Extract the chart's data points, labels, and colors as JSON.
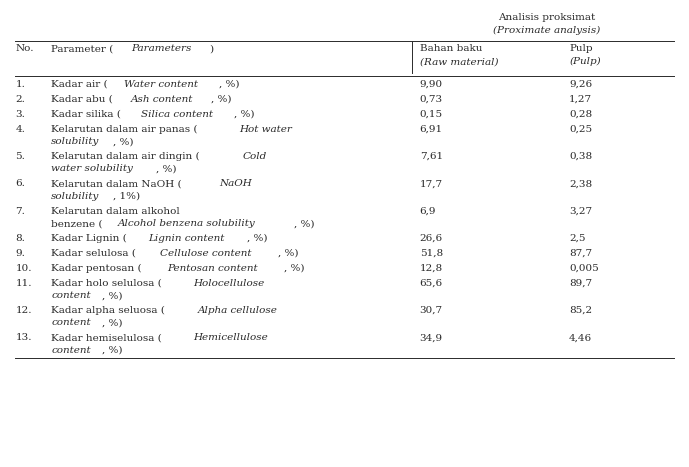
{
  "bg_color": "#ffffff",
  "text_color": "#2a2a2a",
  "fs": 7.5,
  "title1": "Analisis proksimat",
  "title2": "(Proximate analysis)",
  "hdr_no": "No.",
  "hdr_param": "Parameter (",
  "hdr_param_italic": "Parameters",
  "hdr_param_end": ")",
  "hdr_bahan": "Bahan baku",
  "hdr_bahan_italic": "(Raw material)",
  "hdr_pulp": "Pulp",
  "hdr_pulp_italic": "(Pulp)",
  "rows": [
    {
      "no": "1.",
      "lines": [
        [
          {
            "t": "Kadar air (",
            "style": "normal"
          },
          {
            "t": "Water content",
            "style": "italic"
          },
          {
            "t": ", %)",
            "style": "normal"
          }
        ]
      ],
      "val1": "9,90",
      "val2": "9,26"
    },
    {
      "no": "2.",
      "lines": [
        [
          {
            "t": "Kadar abu (",
            "style": "normal"
          },
          {
            "t": "Ash content",
            "style": "italic"
          },
          {
            "t": ", %)",
            "style": "normal"
          }
        ]
      ],
      "val1": "0,73",
      "val2": "1,27"
    },
    {
      "no": "3.",
      "lines": [
        [
          {
            "t": "Kadar silika (",
            "style": "normal"
          },
          {
            "t": "Silica content",
            "style": "italic"
          },
          {
            "t": ", %)",
            "style": "normal"
          }
        ]
      ],
      "val1": "0,15",
      "val2": "0,28"
    },
    {
      "no": "4.",
      "lines": [
        [
          {
            "t": "Kelarutan dalam air panas (",
            "style": "normal"
          },
          {
            "t": "Hot water",
            "style": "italic"
          }
        ],
        [
          {
            "t": "solubility",
            "style": "italic"
          },
          {
            "t": ", %)",
            "style": "normal"
          }
        ]
      ],
      "val1": "6,91",
      "val2": "0,25"
    },
    {
      "no": "5.",
      "lines": [
        [
          {
            "t": "Kelarutan dalam air dingin (",
            "style": "normal"
          },
          {
            "t": "Cold",
            "style": "italic"
          }
        ],
        [
          {
            "t": "water solubility",
            "style": "italic"
          },
          {
            "t": ", %)",
            "style": "normal"
          }
        ]
      ],
      "val1": "7,61",
      "val2": "0,38"
    },
    {
      "no": "6.",
      "lines": [
        [
          {
            "t": "Kelarutan dalam NaOH (",
            "style": "normal"
          },
          {
            "t": "NaOH",
            "style": "italic"
          }
        ],
        [
          {
            "t": "solubility",
            "style": "italic"
          },
          {
            "t": ", 1%)",
            "style": "normal"
          }
        ]
      ],
      "val1": "17,7",
      "val2": "2,38"
    },
    {
      "no": "7.",
      "lines": [
        [
          {
            "t": "Kelarutan dalam alkohol",
            "style": "normal"
          }
        ],
        [
          {
            "t": "benzene (",
            "style": "normal"
          },
          {
            "t": "Alcohol benzena solubility",
            "style": "italic"
          },
          {
            "t": ", %)",
            "style": "normal"
          }
        ]
      ],
      "val1": "6,9",
      "val2": "3,27"
    },
    {
      "no": "8.",
      "lines": [
        [
          {
            "t": "Kadar Lignin (",
            "style": "normal"
          },
          {
            "t": "Lignin content",
            "style": "italic"
          },
          {
            "t": ", %)",
            "style": "normal"
          }
        ]
      ],
      "val1": "26,6",
      "val2": "2,5"
    },
    {
      "no": "9.",
      "lines": [
        [
          {
            "t": "Kadar selulosa (",
            "style": "normal"
          },
          {
            "t": "Cellulose content",
            "style": "italic"
          },
          {
            "t": ", %)",
            "style": "normal"
          }
        ]
      ],
      "val1": "51,8",
      "val2": "87,7"
    },
    {
      "no": "10.",
      "lines": [
        [
          {
            "t": "Kadar pentosan (",
            "style": "normal"
          },
          {
            "t": "Pentosan content",
            "style": "italic"
          },
          {
            "t": ", %)",
            "style": "normal"
          }
        ]
      ],
      "val1": "12,8",
      "val2": "0,005"
    },
    {
      "no": "11.",
      "lines": [
        [
          {
            "t": "Kadar holo selulosa (",
            "style": "normal"
          },
          {
            "t": "Holocellulose",
            "style": "italic"
          }
        ],
        [
          {
            "t": "content",
            "style": "italic"
          },
          {
            "t": ", %)",
            "style": "normal"
          }
        ]
      ],
      "val1": "65,6",
      "val2": "89,7"
    },
    {
      "no": "12.",
      "lines": [
        [
          {
            "t": "Kadar alpha seluosa (",
            "style": "normal"
          },
          {
            "t": "Alpha cellulose",
            "style": "italic"
          }
        ],
        [
          {
            "t": "content",
            "style": "italic"
          },
          {
            "t": ", %)",
            "style": "normal"
          }
        ]
      ],
      "val1": "30,7",
      "val2": "85,2"
    },
    {
      "no": "13.",
      "lines": [
        [
          {
            "t": "Kadar hemiselulosa (",
            "style": "normal"
          },
          {
            "t": "Hemicellulose",
            "style": "italic"
          }
        ],
        [
          {
            "t": "content",
            "style": "italic"
          },
          {
            "t": ", %)",
            "style": "normal"
          }
        ]
      ],
      "val1": "34,9",
      "val2": "4,46"
    }
  ]
}
